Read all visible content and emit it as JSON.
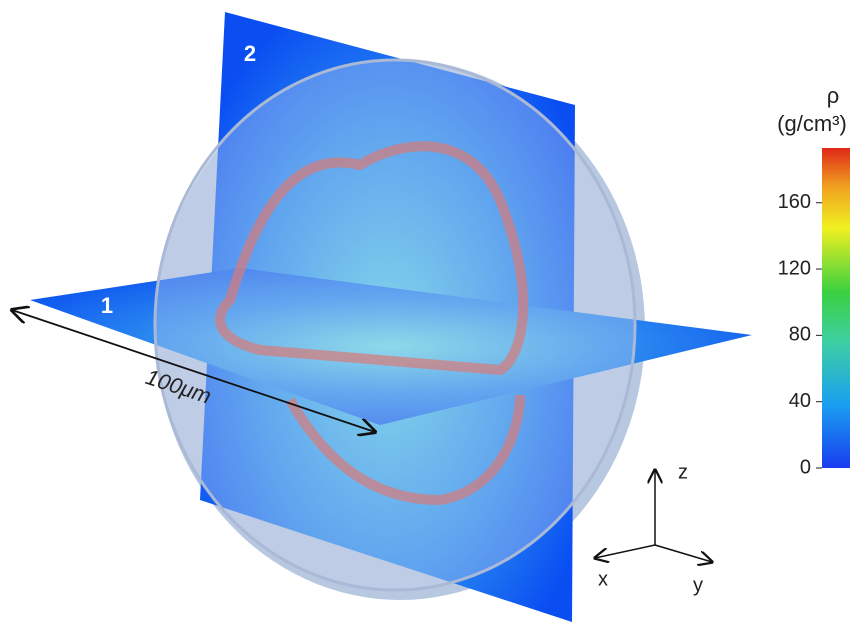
{
  "labels": {
    "plane_1": "1",
    "plane_2": "2",
    "scale_bar": "100μm"
  },
  "colorbar": {
    "title": "ρ",
    "unit": "(g/cm³)",
    "lim": [
      0,
      193
    ],
    "ticks": [
      0,
      40,
      80,
      120,
      160
    ]
  },
  "axes": {
    "x": "x",
    "y": "y",
    "z": "z"
  }
}
